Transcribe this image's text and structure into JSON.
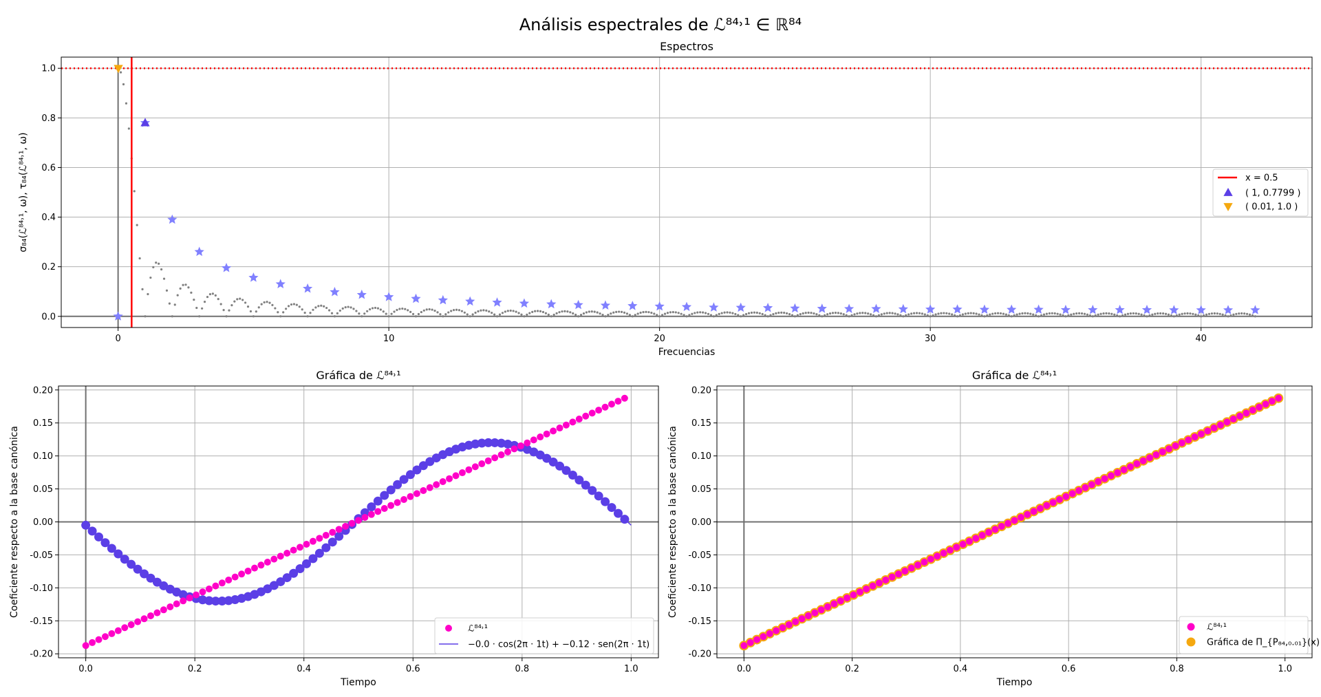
{
  "figure": {
    "title": "Análisis espectrales de ℒ⁸⁴˒¹ ∈ ℝ⁸⁴"
  },
  "chart_data": [
    {
      "type": "scatter",
      "title": "Espectros",
      "xlabel": "Frecuencias",
      "ylabel": "σ₈₄(ℒ⁸⁴˒¹, ω), τ₈₄(ℒ⁸⁴˒¹, ω)",
      "xlim": [
        -2.1,
        44.1
      ],
      "ylim": [
        -0.045,
        1.045
      ],
      "xticks": [
        0,
        10,
        20,
        30,
        40
      ],
      "yticks": [
        0.0,
        0.2,
        0.4,
        0.6,
        0.8,
        1.0
      ],
      "grid": true,
      "hline": {
        "y": 1.0,
        "style": "dotted",
        "color": "#ff0000"
      },
      "vline": {
        "x": 0.5,
        "color": "#ff0000",
        "label": "x = 0.5"
      },
      "spectrum_curve": {
        "n": 84,
        "x_range": [
          0,
          42
        ],
        "step": 0.1,
        "color": "#808080"
      },
      "stars": {
        "x": [
          0,
          1,
          2,
          3,
          4,
          5,
          6,
          7,
          8,
          9,
          10,
          11,
          12,
          13,
          14,
          15,
          16,
          17,
          18,
          19,
          20,
          21,
          22,
          23,
          24,
          25,
          26,
          27,
          28,
          29,
          30,
          31,
          32,
          33,
          34,
          35,
          36,
          37,
          38,
          39,
          40,
          41,
          42
        ],
        "y": [
          0.0,
          0.78,
          0.39,
          0.26,
          0.195,
          0.156,
          0.13,
          0.112,
          0.098,
          0.087,
          0.078,
          0.071,
          0.065,
          0.06,
          0.056,
          0.052,
          0.049,
          0.046,
          0.044,
          0.042,
          0.04,
          0.038,
          0.036,
          0.035,
          0.034,
          0.032,
          0.031,
          0.03,
          0.03,
          0.029,
          0.028,
          0.028,
          0.027,
          0.027,
          0.027,
          0.026,
          0.026,
          0.026,
          0.026,
          0.025,
          0.025,
          0.025,
          0.025
        ],
        "color": "#8080ff"
      },
      "markers": [
        {
          "label": "( 1, 0.7799 )",
          "x": 1,
          "y": 0.7799,
          "shape": "triangle-up",
          "color": "#5b3fe6"
        },
        {
          "label": "( 0.01, 1.0 )",
          "x": 0.01,
          "y": 1.0,
          "shape": "triangle-down",
          "color": "#f5a80f"
        }
      ],
      "legend": "center-right"
    },
    {
      "type": "scatter",
      "title": "Gráfica de ℒ⁸⁴˒¹",
      "xlabel": "Tiempo",
      "ylabel": "Coeficiente respecto a la base canónica",
      "xlim": [
        -0.05,
        1.05
      ],
      "ylim": [
        -0.206,
        0.206
      ],
      "xticks": [
        0.0,
        0.2,
        0.4,
        0.6,
        0.8,
        1.0
      ],
      "yticks": [
        -0.2,
        -0.15,
        -0.1,
        -0.05,
        0.0,
        0.05,
        0.1,
        0.15,
        0.2
      ],
      "grid": true,
      "series": [
        {
          "name": "ℒ⁸⁴˒¹",
          "kind": "points",
          "n": 84,
          "x_start": 0.0,
          "x_end": 0.988,
          "y_start": -0.1875,
          "y_end": 0.1875,
          "color": "#ff00c8"
        },
        {
          "name": "−0.0 · cos(2π · 1t) + −0.12 · sen(2π · 1t)",
          "kind": "line+points",
          "cos_coef": -0.005,
          "sin_coef": -0.12,
          "n": 84,
          "color": "#5b3fe6"
        }
      ],
      "legend": "lower-right"
    },
    {
      "type": "scatter",
      "title": "Gráfica de ℒ⁸⁴˒¹",
      "xlabel": "Tiempo",
      "ylabel": "Coeficiente respecto a la base canónica",
      "xlim": [
        -0.05,
        1.05
      ],
      "ylim": [
        -0.206,
        0.206
      ],
      "xticks": [
        0.0,
        0.2,
        0.4,
        0.6,
        0.8,
        1.0
      ],
      "yticks": [
        -0.2,
        -0.15,
        -0.1,
        -0.05,
        0.0,
        0.05,
        0.1,
        0.15,
        0.2
      ],
      "grid": true,
      "series": [
        {
          "name": "ℒ⁸⁴˒¹",
          "kind": "points",
          "n": 84,
          "x_start": 0.0,
          "x_end": 0.988,
          "y_start": -0.1875,
          "y_end": 0.1875,
          "color": "#ff00c8"
        },
        {
          "name": "Gráfica de Π_{P₈₄,₀.₀₁}(x)",
          "kind": "points",
          "n": 84,
          "x_start": 0.0,
          "x_end": 0.988,
          "y_start": -0.1875,
          "y_end": 0.1875,
          "color": "#f5a80f"
        }
      ],
      "legend": "lower-right"
    }
  ]
}
